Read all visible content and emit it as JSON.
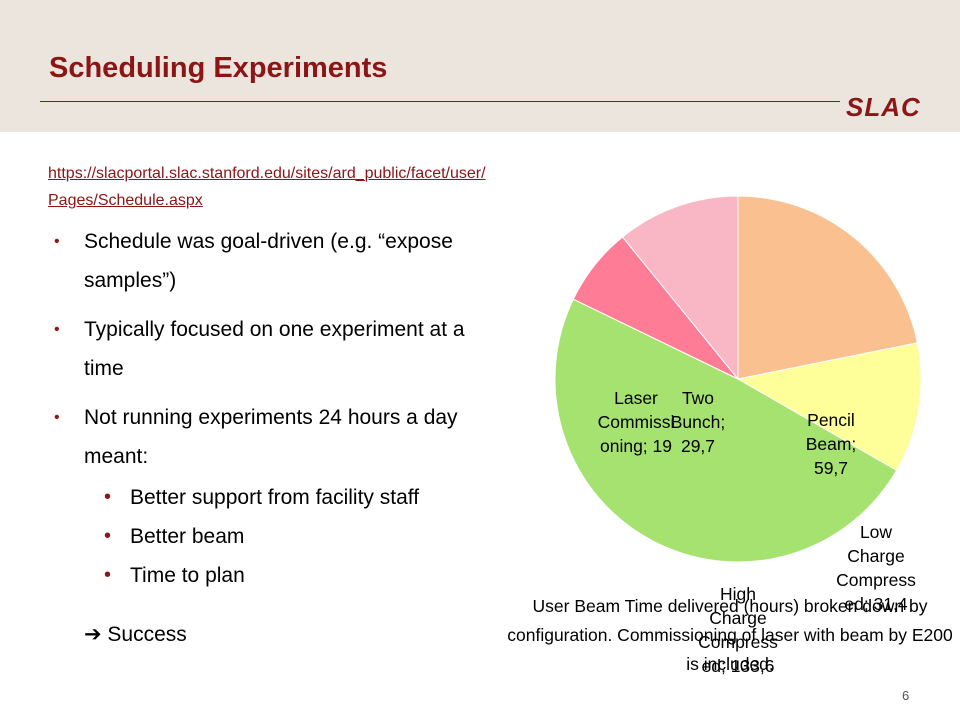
{
  "slide": {
    "title": "Scheduling Experiments",
    "logo_text": "SLAC",
    "page_number": "6",
    "link": "https://slacportal.slac.stanford.edu/sites/ard_public/facet/user/Pages/Schedule.aspx"
  },
  "bullets": [
    {
      "text": "Schedule was goal-driven (e.g. “expose samples”)"
    },
    {
      "text": "Typically focused on one experiment at a time"
    },
    {
      "text": "Not running experiments 24 hours a day meant:"
    }
  ],
  "sub_bullets": [
    {
      "text": "Better support from facility staff"
    },
    {
      "text": "Better beam"
    },
    {
      "text": "Time to plan"
    }
  ],
  "conclusion": "➔ Success",
  "chart_data": {
    "type": "pie",
    "categories": [
      "Pencil Beam",
      "Low Charge Compressed",
      "High Charge Compressed",
      "Laser Commissioning",
      "Two Bunch"
    ],
    "values": [
      59.7,
      31.4,
      133.6,
      19,
      29.7
    ],
    "value_labels": [
      "59,7",
      "31,4",
      "133,6",
      "19",
      "29,7"
    ],
    "colors": [
      "#fac090",
      "#ffff99",
      "#a6e270",
      "#ff7c96",
      "#f9b6c4"
    ],
    "data_labels": [
      [
        "Pencil",
        "Beam;",
        "59,7"
      ],
      [
        "Low",
        "Charge",
        "Compress",
        "ed; 31,4"
      ],
      [
        "High",
        "Charge",
        "Compress",
        "ed; 133,6"
      ],
      [
        "Laser",
        "Commissi",
        "oning; 19"
      ],
      [
        "Two",
        "Bunch;",
        "29,7"
      ]
    ],
    "caption": "User Beam Time delivered (hours) broken down by configuration. Commissioning of laser with beam by E200 is included.",
    "legend": "none"
  }
}
